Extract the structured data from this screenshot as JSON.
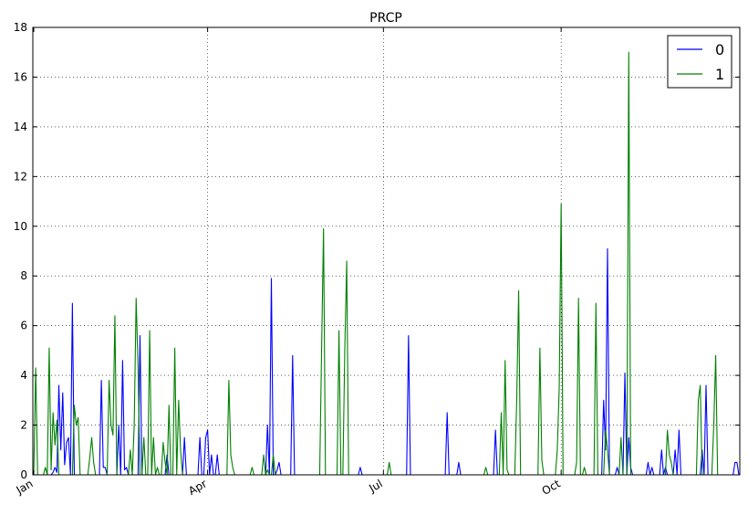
{
  "colors": {
    "series0": "#0000ff",
    "series1": "#008000",
    "axis": "#000000",
    "grid": "#000000",
    "background": "#ffffff"
  },
  "chart_data": {
    "type": "line",
    "title": "PRCP",
    "xlabel": "",
    "ylabel": "",
    "x_unit": "day of year (1 = Jan 1)",
    "xlim": [
      1,
      366
    ],
    "ylim": [
      0,
      18
    ],
    "y_ticks": [
      0,
      2,
      4,
      6,
      8,
      10,
      12,
      14,
      16,
      18
    ],
    "x_ticks": [
      {
        "label": "Jan",
        "day": 1
      },
      {
        "label": "Apr",
        "day": 91
      },
      {
        "label": "Jul",
        "day": 182
      },
      {
        "label": "Oct",
        "day": 274
      }
    ],
    "grid": true,
    "legend_position": "top-right",
    "series": [
      {
        "name": "0",
        "color": "#0000ff",
        "points": [
          [
            10,
            0
          ],
          [
            11,
            0.1
          ],
          [
            12,
            0.3
          ],
          [
            13,
            0.1
          ],
          [
            14,
            3.6
          ],
          [
            15,
            1.0
          ],
          [
            16,
            3.3
          ],
          [
            17,
            0.4
          ],
          [
            18,
            1.3
          ],
          [
            19,
            1.5
          ],
          [
            20,
            0
          ],
          [
            21,
            6.9
          ],
          [
            22,
            0
          ],
          [
            35,
            0
          ],
          [
            36,
            3.8
          ],
          [
            37,
            0.3
          ],
          [
            38,
            0.3
          ],
          [
            39,
            0
          ],
          [
            44,
            0
          ],
          [
            45,
            2.0
          ],
          [
            46,
            0
          ],
          [
            47,
            4.6
          ],
          [
            48,
            0.2
          ],
          [
            49,
            0.3
          ],
          [
            50,
            0
          ],
          [
            55,
            0
          ],
          [
            56,
            5.6
          ],
          [
            57,
            0
          ],
          [
            69,
            0
          ],
          [
            70,
            0.8
          ],
          [
            71,
            0
          ],
          [
            78,
            0
          ],
          [
            79,
            1.5
          ],
          [
            80,
            0
          ],
          [
            86,
            0
          ],
          [
            87,
            1.5
          ],
          [
            88,
            0
          ],
          [
            89,
            0
          ],
          [
            90,
            1.5
          ],
          [
            91,
            1.8
          ],
          [
            92,
            0
          ],
          [
            93,
            0.8
          ],
          [
            94,
            0
          ],
          [
            95,
            0
          ],
          [
            96,
            0.8
          ],
          [
            97,
            0
          ],
          [
            121,
            0
          ],
          [
            122,
            2.0
          ],
          [
            123,
            0
          ],
          [
            124,
            7.9
          ],
          [
            125,
            0
          ],
          [
            126,
            0
          ],
          [
            127,
            0.2
          ],
          [
            128,
            0.5
          ],
          [
            129,
            0
          ],
          [
            134,
            0
          ],
          [
            135,
            4.8
          ],
          [
            136,
            0
          ],
          [
            169,
            0
          ],
          [
            170,
            0.3
          ],
          [
            171,
            0
          ],
          [
            194,
            0
          ],
          [
            195,
            5.6
          ],
          [
            196,
            0
          ],
          [
            214,
            0
          ],
          [
            215,
            2.5
          ],
          [
            216,
            0
          ],
          [
            220,
            0
          ],
          [
            221,
            0.5
          ],
          [
            222,
            0
          ],
          [
            239,
            0
          ],
          [
            240,
            1.8
          ],
          [
            241,
            0
          ],
          [
            295,
            0
          ],
          [
            296,
            3.0
          ],
          [
            297,
            1.0
          ],
          [
            298,
            9.1
          ],
          [
            299,
            0
          ],
          [
            302,
            0
          ],
          [
            303,
            0.3
          ],
          [
            304,
            0
          ],
          [
            306,
            0
          ],
          [
            307,
            4.1
          ],
          [
            308,
            0
          ],
          [
            309,
            1.5
          ],
          [
            310,
            0.3
          ],
          [
            311,
            0
          ],
          [
            318,
            0
          ],
          [
            319,
            0.5
          ],
          [
            320,
            0
          ],
          [
            321,
            0.3
          ],
          [
            322,
            0
          ],
          [
            325,
            0
          ],
          [
            326,
            1.0
          ],
          [
            327,
            0
          ],
          [
            328,
            0.3
          ],
          [
            329,
            0
          ],
          [
            332,
            0
          ],
          [
            333,
            1.0
          ],
          [
            334,
            0
          ],
          [
            335,
            1.8
          ],
          [
            336,
            0
          ],
          [
            346,
            0
          ],
          [
            347,
            1.0
          ],
          [
            348,
            0
          ],
          [
            349,
            3.6
          ],
          [
            350,
            0
          ],
          [
            363,
            0
          ],
          [
            364,
            0.5
          ],
          [
            365,
            0.5
          ]
        ]
      },
      {
        "name": "1",
        "color": "#008000",
        "points": [
          [
            1,
            0
          ],
          [
            2,
            4.3
          ],
          [
            3,
            0
          ],
          [
            6,
            0
          ],
          [
            7,
            0.3
          ],
          [
            8,
            0
          ],
          [
            9,
            5.1
          ],
          [
            10,
            0.2
          ],
          [
            11,
            2.5
          ],
          [
            12,
            1.2
          ],
          [
            13,
            2.2
          ],
          [
            14,
            0
          ],
          [
            21,
            0
          ],
          [
            22,
            2.8
          ],
          [
            23,
            2.0
          ],
          [
            24,
            2.3
          ],
          [
            25,
            0
          ],
          [
            29,
            0
          ],
          [
            30,
            0.7
          ],
          [
            31,
            1.5
          ],
          [
            32,
            0.5
          ],
          [
            33,
            0
          ],
          [
            39,
            0
          ],
          [
            40,
            3.8
          ],
          [
            41,
            2.0
          ],
          [
            42,
            1.6
          ],
          [
            43,
            6.4
          ],
          [
            44,
            0
          ],
          [
            50,
            0
          ],
          [
            51,
            1.0
          ],
          [
            52,
            0
          ],
          [
            53,
            2.0
          ],
          [
            54,
            7.1
          ],
          [
            55,
            4.3
          ],
          [
            56,
            0
          ],
          [
            57,
            0
          ],
          [
            58,
            1.5
          ],
          [
            59,
            0
          ],
          [
            60,
            0
          ],
          [
            61,
            5.8
          ],
          [
            62,
            0
          ],
          [
            63,
            1.5
          ],
          [
            64,
            0
          ],
          [
            65,
            0.3
          ],
          [
            66,
            0
          ],
          [
            67,
            0
          ],
          [
            68,
            1.3
          ],
          [
            69,
            0.5
          ],
          [
            70,
            0
          ],
          [
            71,
            2.8
          ],
          [
            72,
            0
          ],
          [
            73,
            0
          ],
          [
            74,
            5.1
          ],
          [
            75,
            0
          ],
          [
            76,
            3.0
          ],
          [
            77,
            1.0
          ],
          [
            78,
            0
          ],
          [
            101,
            0
          ],
          [
            102,
            3.8
          ],
          [
            103,
            0.8
          ],
          [
            104,
            0.3
          ],
          [
            105,
            0
          ],
          [
            113,
            0
          ],
          [
            114,
            0.3
          ],
          [
            115,
            0
          ],
          [
            119,
            0
          ],
          [
            120,
            0.8
          ],
          [
            121,
            0
          ],
          [
            122,
            0.2
          ],
          [
            123,
            0
          ],
          [
            124,
            0
          ],
          [
            125,
            0.8
          ],
          [
            126,
            0
          ],
          [
            149,
            0
          ],
          [
            150,
            5.0
          ],
          [
            151,
            9.9
          ],
          [
            152,
            0
          ],
          [
            158,
            0
          ],
          [
            159,
            5.8
          ],
          [
            160,
            0
          ],
          [
            161,
            0
          ],
          [
            162,
            5.0
          ],
          [
            163,
            8.6
          ],
          [
            164,
            0
          ],
          [
            184,
            0
          ],
          [
            185,
            0.5
          ],
          [
            186,
            0
          ],
          [
            234,
            0
          ],
          [
            235,
            0.3
          ],
          [
            236,
            0
          ],
          [
            242,
            0
          ],
          [
            243,
            2.5
          ],
          [
            244,
            0
          ],
          [
            245,
            4.6
          ],
          [
            246,
            0.2
          ],
          [
            247,
            0
          ],
          [
            250,
            0
          ],
          [
            251,
            3.0
          ],
          [
            252,
            7.4
          ],
          [
            253,
            0
          ],
          [
            262,
            0
          ],
          [
            263,
            5.1
          ],
          [
            264,
            0.6
          ],
          [
            265,
            0
          ],
          [
            271,
            0
          ],
          [
            272,
            1.0
          ],
          [
            273,
            3.5
          ],
          [
            274,
            10.9
          ],
          [
            275,
            0
          ],
          [
            281,
            0
          ],
          [
            282,
            0.5
          ],
          [
            283,
            7.1
          ],
          [
            284,
            0
          ],
          [
            285,
            0
          ],
          [
            286,
            0.3
          ],
          [
            287,
            0
          ],
          [
            291,
            0
          ],
          [
            292,
            6.9
          ],
          [
            293,
            0
          ],
          [
            296,
            0
          ],
          [
            297,
            1.8
          ],
          [
            298,
            1.0
          ],
          [
            299,
            0
          ],
          [
            304,
            0
          ],
          [
            305,
            1.5
          ],
          [
            306,
            0
          ],
          [
            307,
            0
          ],
          [
            308,
            0
          ],
          [
            309,
            17.0
          ],
          [
            310,
            0
          ],
          [
            328,
            0
          ],
          [
            329,
            1.8
          ],
          [
            330,
            0.8
          ],
          [
            331,
            0.5
          ],
          [
            332,
            0
          ],
          [
            344,
            0
          ],
          [
            345,
            3.0
          ],
          [
            346,
            3.6
          ],
          [
            347,
            0
          ],
          [
            352,
            0
          ],
          [
            353,
            2.0
          ],
          [
            354,
            4.8
          ],
          [
            355,
            0
          ]
        ]
      }
    ]
  }
}
